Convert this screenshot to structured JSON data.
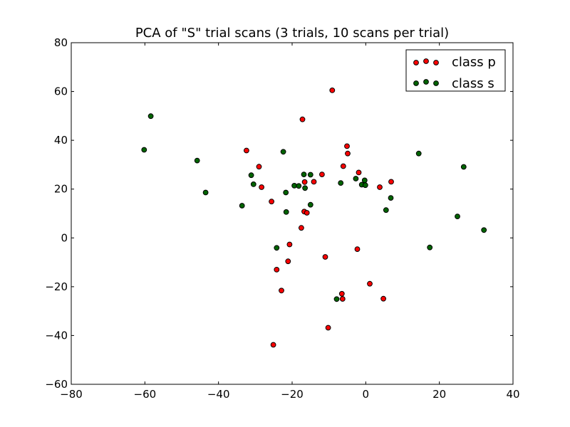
{
  "chart_data": {
    "type": "scatter",
    "title": "PCA of \"S\" trial scans (3 trials, 10 scans per trial)",
    "xlabel": "",
    "ylabel": "",
    "xlim": [
      -80,
      40
    ],
    "ylim": [
      -60,
      80
    ],
    "xticks": [
      -80,
      -60,
      -40,
      -20,
      0,
      20,
      40
    ],
    "yticks": [
      -60,
      -40,
      -20,
      0,
      20,
      40,
      60,
      80
    ],
    "grid": false,
    "legend_position": "upper right",
    "series": [
      {
        "name": "class p",
        "color": "#ff0000",
        "points": [
          [
            -9.1,
            60.5
          ],
          [
            -17.2,
            48.6
          ],
          [
            -32.4,
            35.8
          ],
          [
            -5.1,
            37.6
          ],
          [
            -4.9,
            34.6
          ],
          [
            -29.0,
            29.2
          ],
          [
            -6.1,
            29.4
          ],
          [
            -1.9,
            26.8
          ],
          [
            -11.9,
            26.0
          ],
          [
            -16.6,
            22.9
          ],
          [
            -14.1,
            23.0
          ],
          [
            -28.3,
            20.8
          ],
          [
            3.8,
            20.8
          ],
          [
            6.9,
            23.0
          ],
          [
            -25.6,
            14.9
          ],
          [
            -16.7,
            10.8
          ],
          [
            -16.0,
            10.3
          ],
          [
            -17.5,
            4.1
          ],
          [
            -20.7,
            -2.7
          ],
          [
            -11.0,
            -7.8
          ],
          [
            -2.3,
            -4.6
          ],
          [
            -21.1,
            -9.6
          ],
          [
            -24.2,
            -13.0
          ],
          [
            1.1,
            -18.8
          ],
          [
            -22.9,
            -21.6
          ],
          [
            -6.5,
            -22.9
          ],
          [
            -6.3,
            -25.0
          ],
          [
            4.8,
            -24.9
          ],
          [
            -10.2,
            -36.8
          ],
          [
            -25.1,
            -43.8
          ]
        ]
      },
      {
        "name": "class s",
        "color": "#006400",
        "points": [
          [
            -58.4,
            49.9
          ],
          [
            -60.2,
            36.1
          ],
          [
            -45.8,
            31.7
          ],
          [
            -22.4,
            35.3
          ],
          [
            14.4,
            34.6
          ],
          [
            -31.1,
            25.7
          ],
          [
            -16.8,
            26.0
          ],
          [
            -15.0,
            25.9
          ],
          [
            26.6,
            29.1
          ],
          [
            -2.7,
            24.3
          ],
          [
            -0.3,
            23.6
          ],
          [
            -30.5,
            22.0
          ],
          [
            -19.4,
            21.4
          ],
          [
            -18.2,
            21.3
          ],
          [
            -16.5,
            20.4
          ],
          [
            -6.8,
            22.5
          ],
          [
            -1.1,
            21.8
          ],
          [
            -0.1,
            21.6
          ],
          [
            -43.5,
            18.6
          ],
          [
            -21.7,
            18.6
          ],
          [
            6.8,
            16.4
          ],
          [
            -33.6,
            13.2
          ],
          [
            -15.0,
            13.6
          ],
          [
            -21.6,
            10.6
          ],
          [
            5.5,
            11.4
          ],
          [
            24.9,
            8.8
          ],
          [
            32.1,
            3.2
          ],
          [
            -24.2,
            -4.1
          ],
          [
            17.4,
            -3.9
          ],
          [
            -7.9,
            -25.1
          ]
        ]
      }
    ]
  }
}
